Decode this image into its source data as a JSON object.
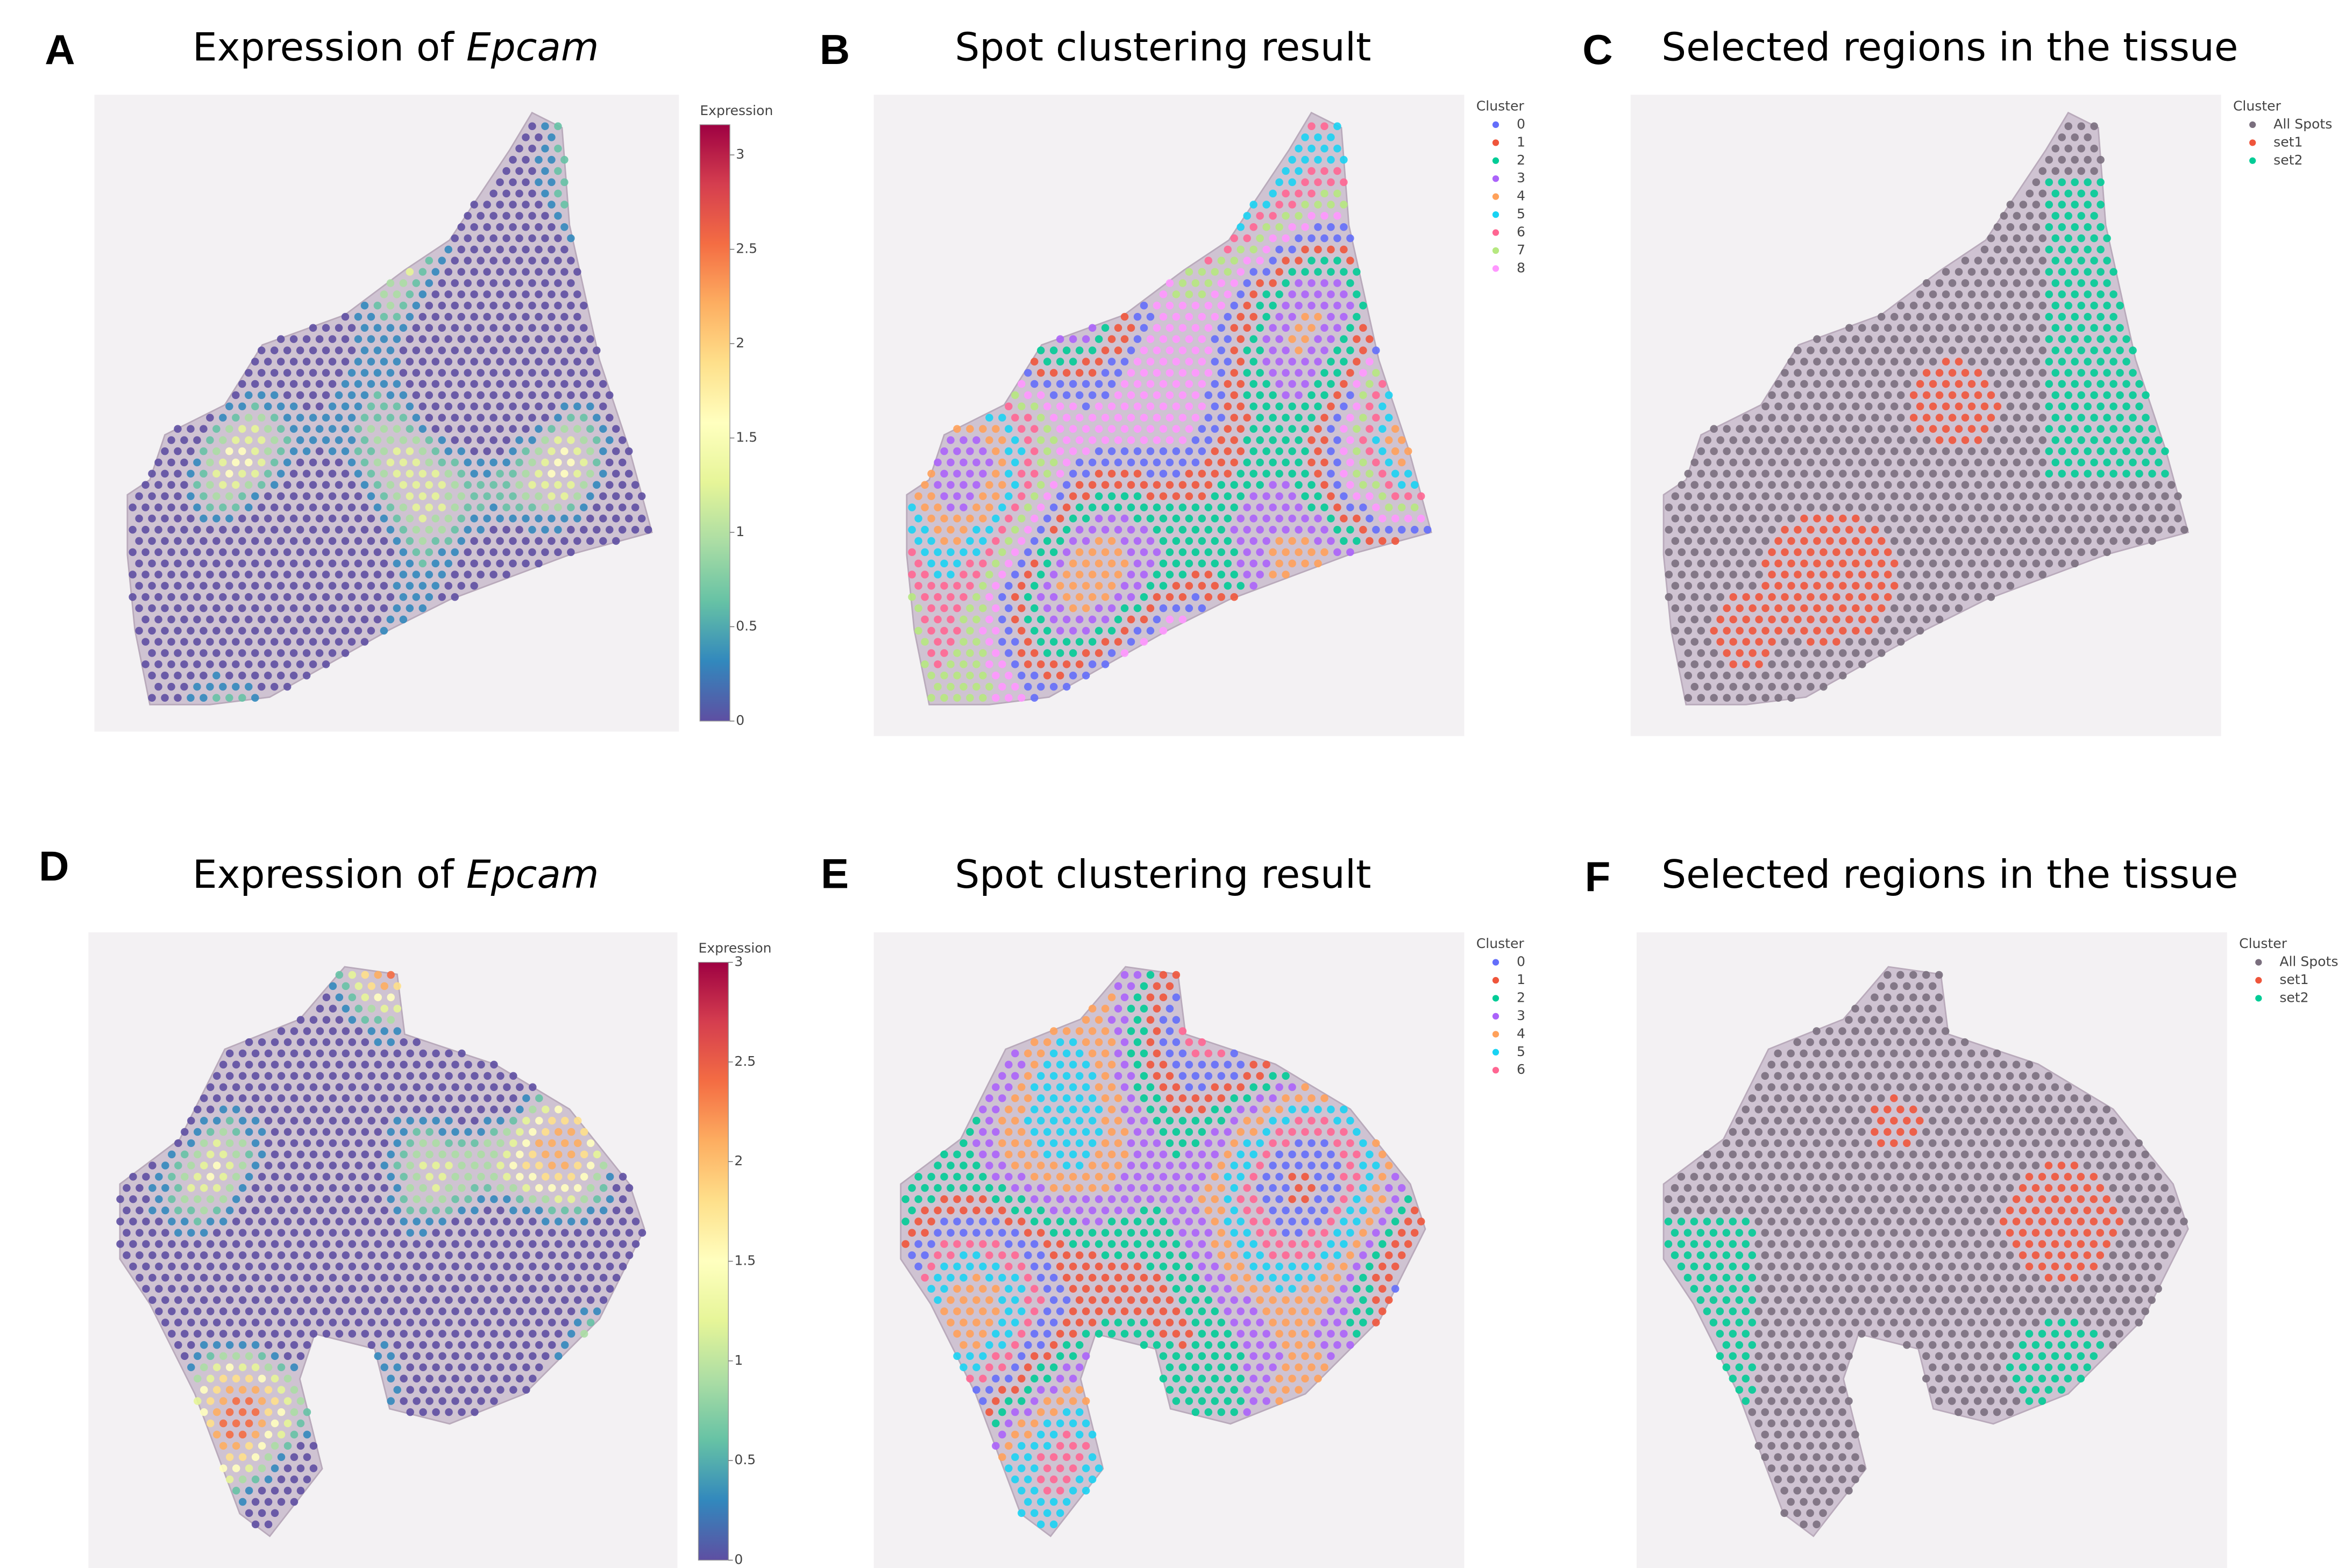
{
  "panels": [
    {
      "letter": "A",
      "title": "Expression of ",
      "title_italic": "Epcam",
      "mode": "expression",
      "colorbar": {
        "title": "Expression",
        "range": [
          0,
          3.16
        ],
        "ticks": [
          0,
          0.5,
          1,
          1.5,
          2,
          2.5,
          3
        ],
        "colorscale": [
          "#5e4fa2",
          "#3288bd",
          "#66c2a5",
          "#abdda4",
          "#e6f598",
          "#ffffbf",
          "#fee08b",
          "#fdae61",
          "#f46d43",
          "#d53e4f",
          "#9e0142"
        ]
      }
    },
    {
      "letter": "B",
      "title": "Spot clustering result",
      "mode": "cluster",
      "legend": {
        "title": "Cluster",
        "items": [
          {
            "label": "0",
            "color": "#636efa"
          },
          {
            "label": "1",
            "color": "#ef553b"
          },
          {
            "label": "2",
            "color": "#00cc96"
          },
          {
            "label": "3",
            "color": "#ab63fa"
          },
          {
            "label": "4",
            "color": "#ffa15a"
          },
          {
            "label": "5",
            "color": "#19d3f3"
          },
          {
            "label": "6",
            "color": "#ff6692"
          },
          {
            "label": "7",
            "color": "#b6e880"
          },
          {
            "label": "8",
            "color": "#ff97ff"
          }
        ]
      }
    },
    {
      "letter": "C",
      "title": "Selected regions in the tissue",
      "mode": "selected",
      "legend": {
        "title": "Cluster",
        "items": [
          {
            "label": "All Spots",
            "color": "#7a6f7e"
          },
          {
            "label": "set1",
            "color": "#ef553b"
          },
          {
            "label": "set2",
            "color": "#00cc96"
          }
        ]
      }
    },
    {
      "letter": "D",
      "title": "Expression of ",
      "title_italic": "Epcam",
      "mode": "expression",
      "colorbar": {
        "title": "Expression",
        "range": [
          0,
          3
        ],
        "ticks": [
          0,
          0.5,
          1,
          1.5,
          2,
          2.5,
          3
        ],
        "colorscale": [
          "#5e4fa2",
          "#3288bd",
          "#66c2a5",
          "#abdda4",
          "#e6f598",
          "#ffffbf",
          "#fee08b",
          "#fdae61",
          "#f46d43",
          "#d53e4f",
          "#9e0142"
        ]
      }
    },
    {
      "letter": "E",
      "title": "Spot clustering result",
      "mode": "cluster",
      "legend": {
        "title": "Cluster",
        "items": [
          {
            "label": "0",
            "color": "#636efa"
          },
          {
            "label": "1",
            "color": "#ef553b"
          },
          {
            "label": "2",
            "color": "#00cc96"
          },
          {
            "label": "3",
            "color": "#ab63fa"
          },
          {
            "label": "4",
            "color": "#ffa15a"
          },
          {
            "label": "5",
            "color": "#19d3f3"
          },
          {
            "label": "6",
            "color": "#ff6692"
          }
        ]
      }
    },
    {
      "letter": "F",
      "title": "Selected regions in the tissue",
      "mode": "selected",
      "legend": {
        "title": "Cluster",
        "items": [
          {
            "label": "All Spots",
            "color": "#7a6f7e"
          },
          {
            "label": "set1",
            "color": "#ef553b"
          },
          {
            "label": "set2",
            "color": "#00cc96"
          }
        ]
      }
    }
  ]
}
